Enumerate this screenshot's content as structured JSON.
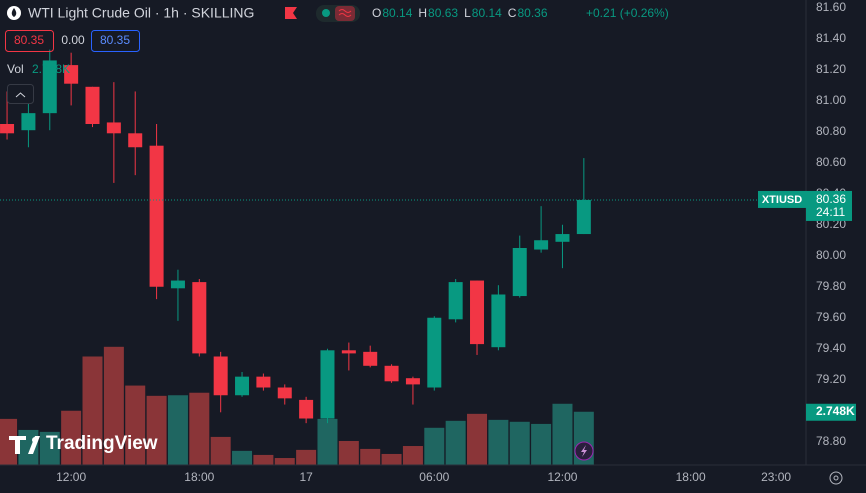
{
  "chart_data": {
    "type": "candlestick",
    "title": "WTI Light Crude Oil · 1h · SKILLING",
    "change": "+0.21 (+0.26%)",
    "bid": "80.35",
    "spread": "0.00",
    "ask": "80.35",
    "symbol": "XTIUSD",
    "countdown": "24:11",
    "watermark": "TradingView",
    "ohlc_keys": [
      "O",
      "H",
      "L",
      "C"
    ],
    "up_color": "#089981",
    "down_color": "#f23645",
    "candles": {
      "open": [
        80.85,
        80.81,
        80.92,
        81.23,
        81.09,
        80.86,
        80.79,
        80.71,
        79.79,
        79.83,
        79.35,
        79.1,
        79.22,
        79.15,
        79.07,
        78.95,
        79.39,
        79.38,
        79.29,
        79.21,
        79.15,
        79.59,
        79.84,
        79.41,
        79.74,
        80.04,
        80.09,
        80.14
      ],
      "high": [
        81.06,
        81.07,
        81.33,
        81.31,
        81.09,
        81.12,
        81.06,
        80.85,
        79.91,
        79.85,
        79.38,
        79.25,
        79.24,
        79.17,
        79.09,
        79.4,
        79.44,
        79.42,
        79.3,
        79.22,
        79.61,
        79.85,
        79.84,
        79.81,
        80.13,
        80.32,
        80.2,
        80.63
      ],
      "low": [
        80.75,
        80.7,
        80.81,
        80.97,
        80.83,
        80.47,
        80.52,
        79.72,
        79.58,
        79.35,
        78.99,
        79.09,
        79.13,
        79.04,
        78.92,
        78.92,
        79.26,
        79.28,
        79.18,
        79.04,
        79.13,
        79.57,
        79.36,
        79.39,
        79.73,
        80.02,
        79.92,
        80.14
      ],
      "close": [
        80.79,
        80.92,
        81.26,
        81.11,
        80.85,
        80.79,
        80.7,
        79.8,
        79.84,
        79.37,
        79.1,
        79.22,
        79.15,
        79.08,
        78.95,
        79.39,
        79.37,
        79.29,
        79.19,
        79.17,
        79.6,
        79.83,
        79.43,
        79.75,
        80.05,
        80.1,
        80.14,
        80.36
      ]
    },
    "volume": {
      "name": "Vol",
      "values": [
        2380,
        1810,
        1710,
        2800,
        5600,
        6100,
        4100,
        3570,
        3600,
        3730,
        1450,
        730,
        520,
        360,
        780,
        2380,
        1240,
        830,
        570,
        980,
        1920,
        2280,
        2640,
        2330,
        2230,
        2120,
        3160,
        2748
      ],
      "last": {
        "value": 2748,
        "label": "2.748K"
      },
      "vlim": [
        0,
        24000
      ],
      "up_color": "#1f6661",
      "down_color": "#8a3538"
    },
    "ylim": [
      78.65,
      81.65
    ],
    "yticks": [
      {
        "value": 81.6,
        "label": "81.60"
      },
      {
        "value": 81.4,
        "label": "81.40"
      },
      {
        "value": 81.2,
        "label": "81.20"
      },
      {
        "value": 81,
        "label": "81.00"
      },
      {
        "value": 80.8,
        "label": "80.80"
      },
      {
        "value": 80.6,
        "label": "80.60"
      },
      {
        "value": 80.4,
        "label": "80.40"
      },
      {
        "value": 80.2,
        "label": "80.20"
      },
      {
        "value": 80,
        "label": "80.00"
      },
      {
        "value": 79.8,
        "label": "79.80"
      },
      {
        "value": 79.6,
        "label": "79.60"
      },
      {
        "value": 79.4,
        "label": "79.40"
      },
      {
        "value": 79.2,
        "label": "79.20"
      },
      {
        "value": 79,
        "label": "79.00"
      },
      {
        "value": 78.8,
        "label": "78.80"
      }
    ],
    "xlim": [
      -0.33,
      37.4
    ],
    "xticks": [
      {
        "value": 3,
        "label": "12:00"
      },
      {
        "value": 9,
        "label": "18:00"
      },
      {
        "value": 14,
        "label": "17"
      },
      {
        "value": 20,
        "label": "06:00"
      },
      {
        "value": 26,
        "label": "12:00"
      },
      {
        "value": 32,
        "label": "18:00"
      },
      {
        "value": 36,
        "label": "23:00"
      }
    ]
  }
}
